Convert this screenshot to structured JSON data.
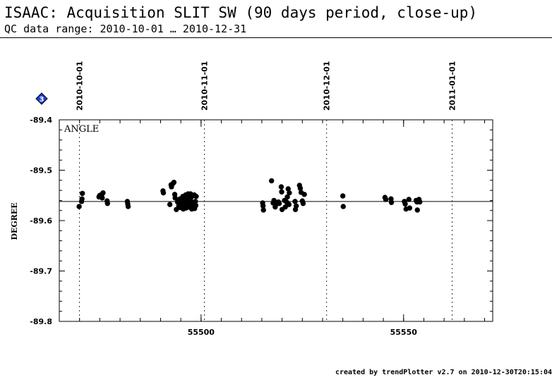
{
  "header": {
    "title": "ISAAC: Acquisition SLIT SW (90 days period, close-up)",
    "subtitle": "QC data range: 2010-10-01 … 2010-12-31"
  },
  "footer": "created by trendPlotter v2.7 on 2010-12-30T20:15:04",
  "badge": {
    "label": "3",
    "color": "#1f3fd6",
    "icon": "diamond-icon"
  },
  "chart_data": {
    "type": "scatter",
    "title": "",
    "panel_label": "ANGLE",
    "xlabel": "",
    "ylabel": "DEGREE",
    "xlim": [
      55465,
      55572
    ],
    "ylim": [
      -89.8,
      -89.4
    ],
    "x_ticks": [
      55500,
      55550
    ],
    "x_minor_tick_step": 5,
    "y_ticks": [
      -89.4,
      -89.5,
      -89.6,
      -89.7,
      -89.8
    ],
    "y_tick_labels": [
      "-89.4",
      "-89.5",
      "-89.6",
      "-89.7",
      "-89.8"
    ],
    "reference_line_y": -89.562,
    "date_markers": [
      {
        "x": 55470,
        "label": "2010-10-01"
      },
      {
        "x": 55500.8,
        "label": "2010-11-01"
      },
      {
        "x": 55531,
        "label": "2010-12-01"
      },
      {
        "x": 55562,
        "label": "2011-01-01"
      }
    ],
    "grid": false,
    "series": [
      {
        "points": [
          [
            55469.9,
            -89.572
          ],
          [
            55470.5,
            -89.562
          ],
          [
            55470.6,
            -89.557
          ],
          [
            55470.7,
            -89.546
          ],
          [
            55474.8,
            -89.553
          ],
          [
            55475.0,
            -89.55
          ],
          [
            55475.5,
            -89.548
          ],
          [
            55475.6,
            -89.555
          ],
          [
            55475.8,
            -89.545
          ],
          [
            55476.8,
            -89.561
          ],
          [
            55476.9,
            -89.566
          ],
          [
            55481.8,
            -89.562
          ],
          [
            55481.9,
            -89.567
          ],
          [
            55482.0,
            -89.572
          ],
          [
            55490.6,
            -89.541
          ],
          [
            55490.7,
            -89.545
          ],
          [
            55492.3,
            -89.568
          ],
          [
            55492.6,
            -89.529
          ],
          [
            55492.7,
            -89.533
          ],
          [
            55493.1,
            -89.526
          ],
          [
            55493.3,
            -89.524
          ],
          [
            55493.5,
            -89.548
          ],
          [
            55493.6,
            -89.555
          ],
          [
            55493.9,
            -89.578
          ],
          [
            55494.2,
            -89.563
          ],
          [
            55494.5,
            -89.571
          ],
          [
            55494.8,
            -89.557
          ],
          [
            55494.9,
            -89.574
          ],
          [
            55495.2,
            -89.559
          ],
          [
            55495.3,
            -89.566
          ],
          [
            55495.5,
            -89.552
          ],
          [
            55495.6,
            -89.577
          ],
          [
            55495.9,
            -89.56
          ],
          [
            55496.0,
            -89.569
          ],
          [
            55496.2,
            -89.549
          ],
          [
            55496.3,
            -89.575
          ],
          [
            55496.5,
            -89.557
          ],
          [
            55496.6,
            -89.565
          ],
          [
            55496.8,
            -89.547
          ],
          [
            55496.9,
            -89.573
          ],
          [
            55497.1,
            -89.554
          ],
          [
            55497.2,
            -89.568
          ],
          [
            55497.4,
            -89.547
          ],
          [
            55497.5,
            -89.561
          ],
          [
            55497.7,
            -89.577
          ],
          [
            55497.8,
            -89.552
          ],
          [
            55498.0,
            -89.566
          ],
          [
            55498.1,
            -89.571
          ],
          [
            55498.3,
            -89.549
          ],
          [
            55498.4,
            -89.576
          ],
          [
            55498.6,
            -89.562
          ],
          [
            55498.7,
            -89.57
          ],
          [
            55498.8,
            -89.552
          ],
          [
            55515.2,
            -89.565
          ],
          [
            55515.3,
            -89.571
          ],
          [
            55515.4,
            -89.579
          ],
          [
            55517.4,
            -89.521
          ],
          [
            55517.8,
            -89.565
          ],
          [
            55518.0,
            -89.56
          ],
          [
            55518.3,
            -89.573
          ],
          [
            55518.5,
            -89.568
          ],
          [
            55519.1,
            -89.563
          ],
          [
            55519.3,
            -89.566
          ],
          [
            55519.8,
            -89.533
          ],
          [
            55519.9,
            -89.543
          ],
          [
            55520.0,
            -89.578
          ],
          [
            55520.6,
            -89.56
          ],
          [
            55520.8,
            -89.573
          ],
          [
            55521.1,
            -89.563
          ],
          [
            55521.3,
            -89.553
          ],
          [
            55521.5,
            -89.537
          ],
          [
            55521.7,
            -89.568
          ],
          [
            55521.8,
            -89.545
          ],
          [
            55523.2,
            -89.562
          ],
          [
            55523.3,
            -89.578
          ],
          [
            55523.5,
            -89.571
          ],
          [
            55524.3,
            -89.53
          ],
          [
            55524.5,
            -89.536
          ],
          [
            55524.7,
            -89.544
          ],
          [
            55525.0,
            -89.561
          ],
          [
            55525.2,
            -89.566
          ],
          [
            55525.5,
            -89.548
          ],
          [
            55535.0,
            -89.551
          ],
          [
            55535.1,
            -89.572
          ],
          [
            55545.4,
            -89.554
          ],
          [
            55545.6,
            -89.558
          ],
          [
            55546.9,
            -89.557
          ],
          [
            55547.0,
            -89.564
          ],
          [
            55550.2,
            -89.562
          ],
          [
            55550.4,
            -89.567
          ],
          [
            55550.6,
            -89.577
          ],
          [
            55551.3,
            -89.558
          ],
          [
            55551.5,
            -89.575
          ],
          [
            55553.1,
            -89.56
          ],
          [
            55553.3,
            -89.563
          ],
          [
            55553.4,
            -89.579
          ],
          [
            55553.8,
            -89.558
          ],
          [
            55554.0,
            -89.563
          ]
        ]
      }
    ]
  }
}
